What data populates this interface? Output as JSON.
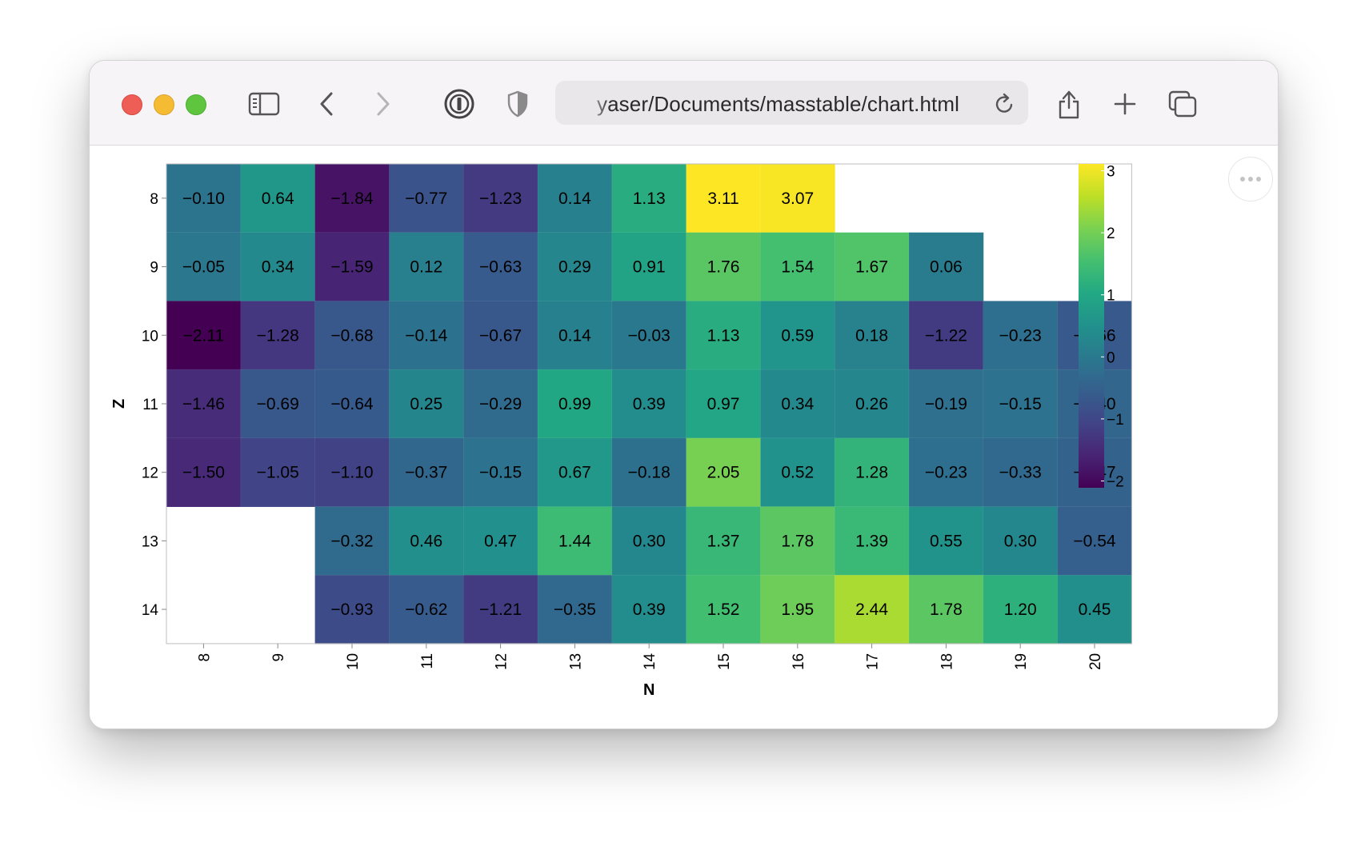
{
  "browser": {
    "url": "yaser/Documents/masstable/chart.html",
    "icons": [
      "sidebar-icon",
      "back-icon",
      "forward-icon",
      "password-manager-icon",
      "privacy-shield-icon",
      "reload-icon",
      "share-icon",
      "new-tab-icon",
      "tab-overview-icon",
      "more-icon"
    ]
  },
  "chart_data": {
    "type": "heatmap",
    "xlabel": "N",
    "ylabel": "Z",
    "x": [
      8,
      9,
      10,
      11,
      12,
      13,
      14,
      15,
      16,
      17,
      18,
      19,
      20
    ],
    "y": [
      8,
      9,
      10,
      11,
      12,
      13,
      14
    ],
    "values": [
      [
        -0.1,
        0.64,
        -1.84,
        -0.77,
        -1.23,
        0.14,
        1.13,
        3.11,
        3.07,
        null,
        null,
        null,
        null
      ],
      [
        -0.05,
        0.34,
        -1.59,
        0.12,
        -0.63,
        0.29,
        0.91,
        1.76,
        1.54,
        1.67,
        0.06,
        null,
        null
      ],
      [
        -2.11,
        -1.28,
        -0.68,
        -0.14,
        -0.67,
        0.14,
        -0.03,
        1.13,
        0.59,
        0.18,
        -1.22,
        -0.23,
        -0.66
      ],
      [
        -1.46,
        -0.69,
        -0.64,
        0.25,
        -0.29,
        0.99,
        0.39,
        0.97,
        0.34,
        0.26,
        -0.19,
        -0.15,
        -0.4
      ],
      [
        -1.5,
        -1.05,
        -1.1,
        -0.37,
        -0.15,
        0.67,
        -0.18,
        2.05,
        0.52,
        1.28,
        -0.23,
        -0.33,
        -0.47
      ],
      [
        null,
        null,
        -0.32,
        0.46,
        0.47,
        1.44,
        0.3,
        1.37,
        1.78,
        1.39,
        0.55,
        0.3,
        -0.54
      ],
      [
        null,
        null,
        -0.93,
        -0.62,
        -1.21,
        -0.35,
        0.39,
        1.52,
        1.95,
        2.44,
        1.78,
        1.2,
        0.45
      ]
    ],
    "colorscale": "viridis",
    "color_domain": [
      -2.11,
      3.11
    ],
    "legend": {
      "position": "right",
      "ticks": [
        3,
        2,
        1,
        0,
        -1,
        -2
      ]
    }
  }
}
